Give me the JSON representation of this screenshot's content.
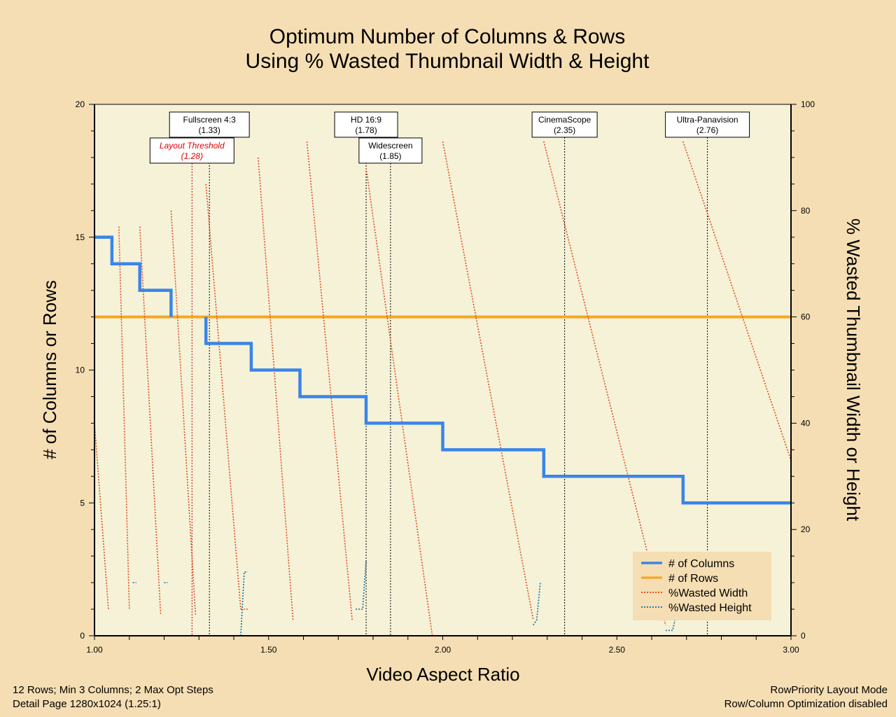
{
  "footer": {
    "left_line1": "12 Rows; Min 3 Columns; 2 Max Opt Steps",
    "left_line2": "Detail Page  1280x1024 (1.25:1)",
    "right_line1": "RowPriority Layout Mode",
    "right_line2": "Row/Column Optimization disabled"
  },
  "colors": {
    "background": "#f5deb3",
    "plot_background": "#f5f2d8",
    "columns": "#3a85e8",
    "rows": "#f5a623",
    "wasted_width": "#e05020",
    "wasted_height": "#2a7aa8",
    "legend_background": "#f5deb3"
  },
  "chart_data": {
    "type": "line",
    "title_line1": "Optimum Number of Columns & Rows",
    "title_line2": "Using % Wasted Thumbnail Width & Height",
    "xlabel": "Video Aspect Ratio",
    "ylabel_left": "# of Columns or Rows",
    "ylabel_right": "% Wasted Thumbnail Width or Height",
    "xlim": [
      1.0,
      3.0
    ],
    "ylim_left": [
      0,
      20
    ],
    "ylim_right": [
      0,
      100
    ],
    "x_ticks": [
      "1.00",
      "1.50",
      "2.00",
      "2.50",
      "3.00"
    ],
    "x_tick_values": [
      1.0,
      1.5,
      2.0,
      2.5,
      3.0
    ],
    "y_ticks_left": [
      "0",
      "5",
      "10",
      "15",
      "20"
    ],
    "y_ticks_left_values": [
      0,
      5,
      10,
      15,
      20
    ],
    "y_ticks_right": [
      "0",
      "20",
      "40",
      "60",
      "80",
      "100"
    ],
    "y_ticks_right_values": [
      0,
      20,
      40,
      60,
      80,
      100
    ],
    "legend_position": "bottom-right",
    "legend": [
      "# of Columns",
      "# of Rows",
      "%Wasted Width",
      "%Wasted Height"
    ],
    "annotations": [
      {
        "label": "Fullscreen 4:3",
        "value": "(1.33)",
        "x": 1.33,
        "row": 0,
        "style": "normal"
      },
      {
        "label": "Layout Threshold",
        "value": "(1.28)",
        "x": 1.28,
        "row": 1,
        "style": "threshold"
      },
      {
        "label": "HD 16:9",
        "value": "(1.78)",
        "x": 1.78,
        "row": 0,
        "style": "normal"
      },
      {
        "label": "Widescreen",
        "value": "(1.85)",
        "x": 1.85,
        "row": 1,
        "style": "normal"
      },
      {
        "label": "CinemaScope",
        "value": "(2.35)",
        "x": 2.35,
        "row": 0,
        "style": "normal"
      },
      {
        "label": "Ultra-Panavision",
        "value": "(2.76)",
        "x": 2.76,
        "row": 0,
        "style": "normal"
      }
    ],
    "series": [
      {
        "name": "# of Columns",
        "axis": "left",
        "segments": [
          [
            [
              1.0,
              15
            ],
            [
              1.05,
              15
            ],
            [
              1.05,
              14
            ],
            [
              1.13,
              14
            ],
            [
              1.13,
              13
            ],
            [
              1.22,
              13
            ],
            [
              1.22,
              12
            ]
          ],
          [
            [
              1.32,
              12
            ],
            [
              1.32,
              11
            ],
            [
              1.45,
              11
            ],
            [
              1.45,
              10
            ],
            [
              1.59,
              10
            ],
            [
              1.59,
              9
            ],
            [
              1.78,
              9
            ],
            [
              1.78,
              8
            ],
            [
              2.0,
              8
            ],
            [
              2.0,
              7
            ],
            [
              2.29,
              7
            ],
            [
              2.29,
              6
            ],
            [
              2.69,
              6
            ],
            [
              2.69,
              5
            ],
            [
              3.0,
              5
            ]
          ]
        ]
      },
      {
        "name": "# of Rows",
        "axis": "left",
        "segments": [
          [
            [
              1.0,
              12
            ],
            [
              3.0,
              12
            ]
          ]
        ]
      },
      {
        "name": "%Wasted Width",
        "axis": "right",
        "segments": [
          [
            [
              1.0,
              40
            ],
            [
              1.04,
              5
            ]
          ],
          [
            [
              1.07,
              77
            ],
            [
              1.1,
              5
            ]
          ],
          [
            [
              1.13,
              77
            ],
            [
              1.19,
              4
            ]
          ],
          [
            [
              1.22,
              80
            ],
            [
              1.29,
              4
            ]
          ],
          [
            [
              1.32,
              85
            ],
            [
              1.42,
              5
            ]
          ],
          [
            [
              1.42,
              5
            ],
            [
              1.44,
              5
            ]
          ],
          [
            [
              1.47,
              90
            ],
            [
              1.57,
              3
            ]
          ],
          [
            [
              1.61,
              93
            ],
            [
              1.74,
              3
            ]
          ],
          [
            [
              1.78,
              88
            ],
            [
              1.97,
              0
            ]
          ],
          [
            [
              2.0,
              93
            ],
            [
              2.26,
              3
            ]
          ],
          [
            [
              2.29,
              93
            ],
            [
              2.64,
              2
            ]
          ],
          [
            [
              2.69,
              93
            ],
            [
              3.0,
              33
            ]
          ]
        ]
      },
      {
        "name": "%Wasted Height",
        "axis": "right",
        "segments": [
          [
            [
              1.11,
              10
            ],
            [
              1.12,
              10
            ]
          ],
          [
            [
              1.2,
              10
            ],
            [
              1.21,
              10
            ]
          ],
          [
            [
              1.42,
              0
            ],
            [
              1.43,
              12
            ],
            [
              1.44,
              12
            ]
          ],
          [
            [
              1.75,
              5
            ],
            [
              1.77,
              5
            ],
            [
              1.78,
              14
            ]
          ],
          [
            [
              2.26,
              2
            ],
            [
              2.27,
              3
            ],
            [
              2.28,
              10
            ]
          ],
          [
            [
              2.64,
              1
            ],
            [
              2.66,
              1
            ],
            [
              2.67,
              4
            ]
          ]
        ]
      }
    ]
  }
}
